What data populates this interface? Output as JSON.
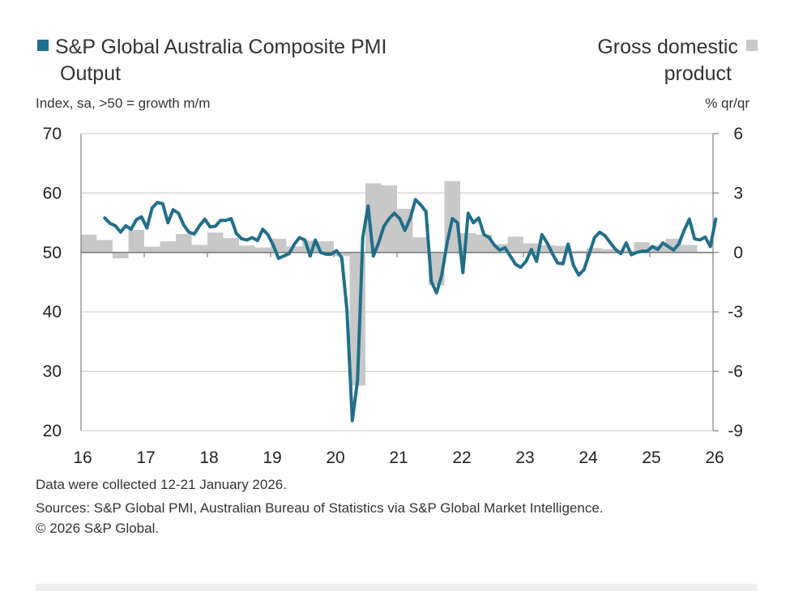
{
  "colors": {
    "pmi_line": "#1f6f8b",
    "gdp_bars": "#c8c8c8",
    "grid": "#d0d0d0",
    "axis": "#7f7f7f",
    "text": "#333333"
  },
  "chart_data": {
    "type": "line+bar",
    "legend": [
      {
        "name": "S&P Global Australia Composite PMI",
        "name_line2": "Output",
        "type": "line",
        "axis": "left",
        "placement": "top-left"
      },
      {
        "name": "Gross domestic",
        "name_line2": "product",
        "type": "bar",
        "axis": "right",
        "placement": "top-right"
      }
    ],
    "ylabel_left": "Index, sa, >50 = growth m/m",
    "ylabel_right": "% qr/qr",
    "ylim_left": [
      20,
      70
    ],
    "ylim_right": [
      -9,
      6
    ],
    "yticks_left": [
      "70",
      "60",
      "50",
      "40",
      "30",
      "20"
    ],
    "yticks_right": [
      "6",
      "3",
      "0",
      "-3",
      "-6",
      "-9"
    ],
    "xticks": [
      "16",
      "17",
      "18",
      "19",
      "20",
      "21",
      "22",
      "23",
      "24",
      "25",
      "26"
    ],
    "grid": true,
    "pmi": {
      "start": "2016-05",
      "frequency": "monthly",
      "values": [
        55.8,
        54.9,
        54.5,
        53.4,
        54.5,
        53.9,
        55.5,
        56.0,
        54.1,
        57.5,
        58.4,
        58.2,
        55.0,
        57.2,
        56.6,
        54.6,
        53.4,
        53.1,
        54.5,
        55.6,
        54.3,
        54.4,
        55.4,
        55.4,
        55.7,
        53.2,
        52.3,
        52.1,
        52.5,
        52.0,
        53.9,
        53.0,
        51.2,
        49.0,
        49.4,
        49.8,
        51.4,
        52.5,
        52.1,
        49.4,
        52.1,
        50.0,
        49.7,
        49.7,
        50.3,
        49.1,
        40.3,
        21.7,
        28.5,
        52.5,
        57.8,
        49.4,
        51.6,
        54.4,
        55.7,
        56.6,
        55.7,
        53.7,
        55.7,
        58.9,
        58.0,
        56.9,
        45.1,
        43.2,
        46.2,
        51.6,
        55.7,
        55.0,
        46.6,
        56.6,
        55.0,
        55.8,
        53.0,
        52.5,
        51.2,
        50.4,
        50.8,
        49.4,
        48.0,
        47.5,
        48.5,
        50.5,
        48.5,
        53.0,
        51.6,
        49.8,
        48.2,
        48.1,
        51.4,
        47.8,
        46.2,
        47.1,
        49.8,
        52.5,
        53.4,
        52.8,
        51.6,
        50.5,
        49.8,
        51.6,
        49.6,
        50.0,
        50.2,
        50.2,
        51.0,
        50.5,
        51.6,
        51.0,
        50.4,
        51.4,
        53.7,
        55.6,
        52.3,
        52.1,
        52.6,
        51.0,
        55.6
      ]
    },
    "gdp": {
      "start": "2016-Q1",
      "frequency": "quarterly",
      "values": [
        0.9,
        0.63,
        -0.3,
        1.14,
        0.29,
        0.56,
        0.93,
        0.38,
        1.0,
        0.72,
        0.35,
        0.25,
        0.69,
        0.3,
        0.6,
        0.56,
        -0.19,
        -6.73,
        3.49,
        3.38,
        2.2,
        0.76,
        -1.66,
        3.6,
        0.97,
        0.9,
        0.42,
        0.8,
        0.46,
        0.36,
        0.33,
        0.08,
        0.22,
        0.17,
        0.1,
        0.52,
        0.35,
        0.69,
        0.38
      ]
    }
  },
  "footer": {
    "note": "Data were collected 12-21 January 2026.",
    "sources": "Sources: S&P Global PMI, Australian Bureau of Statistics via S&P Global Market Intelligence.",
    "copyright": "© 2026 S&P Global."
  }
}
